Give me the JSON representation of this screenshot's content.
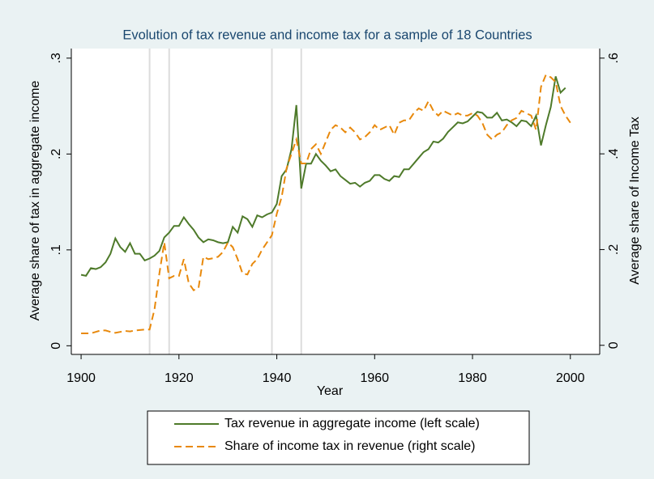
{
  "chart_data": {
    "type": "line",
    "title": "Evolution of tax revenue and income tax for a sample of 18 Countries",
    "xlabel": "Year",
    "ylabel": "Average share of tax in aggregate income",
    "y2label": "Average share of Income Tax",
    "x": [
      1900,
      1901,
      1902,
      1903,
      1904,
      1905,
      1906,
      1907,
      1908,
      1909,
      1910,
      1911,
      1912,
      1913,
      1914,
      1915,
      1916,
      1917,
      1918,
      1919,
      1920,
      1921,
      1922,
      1923,
      1924,
      1925,
      1926,
      1927,
      1928,
      1929,
      1930,
      1931,
      1932,
      1933,
      1934,
      1935,
      1936,
      1937,
      1938,
      1939,
      1940,
      1941,
      1942,
      1943,
      1944,
      1945,
      1946,
      1947,
      1948,
      1949,
      1950,
      1951,
      1952,
      1953,
      1954,
      1955,
      1956,
      1957,
      1958,
      1959,
      1960,
      1961,
      1962,
      1963,
      1964,
      1965,
      1966,
      1967,
      1968,
      1969,
      1970,
      1971,
      1972,
      1973,
      1974,
      1975,
      1976,
      1977,
      1978,
      1979,
      1980,
      1981,
      1982,
      1983,
      1984,
      1985,
      1986,
      1987,
      1988,
      1989,
      1990,
      1991,
      1992,
      1993,
      1994,
      1995,
      1996,
      1997,
      1998,
      1999,
      2000
    ],
    "series": [
      {
        "name": "Tax revenue in aggregate income (left scale)",
        "color": "#4e7a2a",
        "dash": "none",
        "axis": "y",
        "values": [
          0.074,
          0.073,
          0.081,
          0.08,
          0.082,
          0.087,
          0.096,
          0.112,
          0.103,
          0.098,
          0.107,
          0.096,
          0.096,
          0.089,
          0.091,
          0.094,
          0.099,
          0.113,
          0.118,
          0.125,
          0.125,
          0.134,
          0.127,
          0.121,
          0.113,
          0.108,
          0.111,
          0.11,
          0.108,
          0.107,
          0.108,
          0.124,
          0.118,
          0.135,
          0.132,
          0.124,
          0.136,
          0.134,
          0.137,
          0.139,
          0.148,
          0.177,
          0.184,
          0.205,
          0.251,
          0.164,
          0.19,
          0.19,
          0.2,
          0.193,
          0.188,
          0.182,
          0.184,
          0.177,
          0.173,
          0.169,
          0.17,
          0.166,
          0.17,
          0.172,
          0.178,
          0.178,
          0.174,
          0.172,
          0.177,
          0.176,
          0.184,
          0.184,
          0.19,
          0.196,
          0.202,
          0.205,
          0.213,
          0.212,
          0.216,
          0.223,
          0.228,
          0.233,
          0.232,
          0.234,
          0.239,
          0.244,
          0.243,
          0.238,
          0.238,
          0.243,
          0.235,
          0.236,
          0.233,
          0.229,
          0.235,
          0.234,
          0.229,
          0.24,
          0.209,
          0.23,
          0.249,
          0.281,
          0.264,
          0.269,
          null
        ]
      },
      {
        "name": "Share of income tax in revenue (right scale)",
        "color": "#e8890c",
        "dash": "9 5",
        "axis": "y2",
        "values": [
          0.025,
          0.025,
          0.025,
          0.028,
          0.031,
          0.031,
          0.028,
          0.026,
          0.028,
          0.03,
          0.029,
          0.031,
          0.032,
          0.033,
          0.033,
          0.075,
          0.15,
          0.215,
          0.14,
          0.145,
          0.145,
          0.18,
          0.13,
          0.115,
          0.12,
          0.185,
          0.18,
          0.182,
          0.185,
          0.195,
          0.215,
          0.205,
          0.18,
          0.15,
          0.148,
          0.17,
          0.18,
          0.2,
          0.215,
          0.23,
          0.275,
          0.31,
          0.37,
          0.4,
          0.43,
          0.38,
          0.38,
          0.41,
          0.42,
          0.4,
          0.425,
          0.45,
          0.46,
          0.455,
          0.445,
          0.455,
          0.445,
          0.43,
          0.435,
          0.445,
          0.46,
          0.45,
          0.455,
          0.46,
          0.44,
          0.465,
          0.47,
          0.47,
          0.485,
          0.495,
          0.49,
          0.51,
          0.49,
          0.48,
          0.49,
          0.485,
          0.48,
          0.485,
          0.48,
          0.48,
          0.485,
          0.48,
          0.465,
          0.44,
          0.43,
          0.44,
          0.445,
          0.46,
          0.47,
          0.475,
          0.49,
          0.485,
          0.48,
          0.45,
          0.54,
          0.565,
          0.56,
          0.55,
          0.5,
          0.48,
          0.465
        ]
      }
    ],
    "xlim": [
      1898,
      2006
    ],
    "xticks": [
      1900,
      1920,
      1940,
      1960,
      1980,
      2000
    ],
    "ylim": [
      -0.009,
      0.31
    ],
    "yticks": [
      0,
      {
        "value": 0.1,
        "label": ".1"
      },
      {
        "value": 0.2,
        "label": ".2"
      },
      {
        "value": 0.3,
        "label": ".3"
      }
    ],
    "y2lim": [
      -0.019,
      0.62
    ],
    "y2ticks": [
      0,
      {
        "value": 0.2,
        "label": ".2"
      },
      {
        "value": 0.4,
        "label": ".4"
      },
      {
        "value": 0.6,
        "label": ".6"
      }
    ],
    "xlines": [
      1914,
      1918,
      1939,
      1945
    ],
    "legend": "bottom"
  }
}
